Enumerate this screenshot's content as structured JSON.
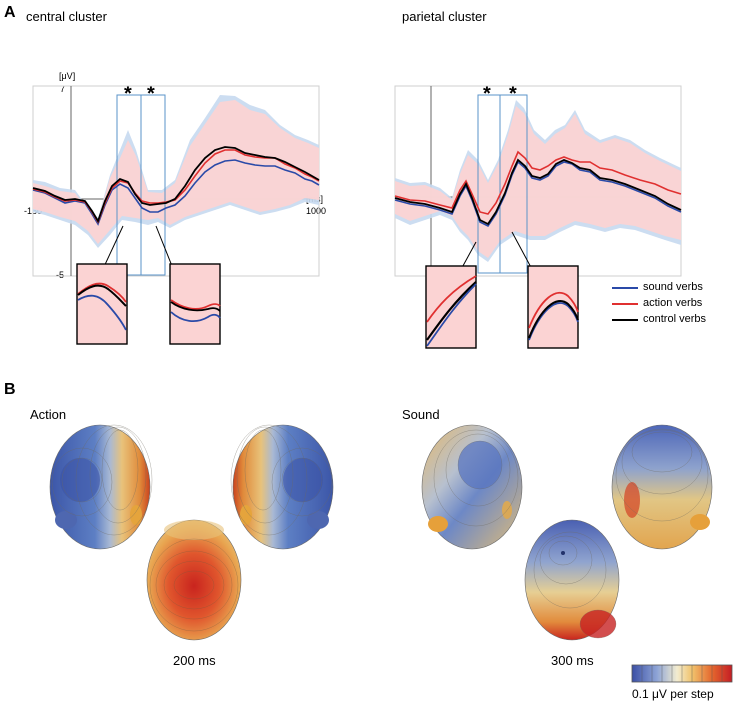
{
  "panelA": {
    "letter": "A",
    "clusters": [
      {
        "title": "central cluster",
        "y_unit": "[μV]",
        "x_unit": "[ms]",
        "y_max": "7",
        "y_min": "-5",
        "x_min": "-150",
        "x_max": "1000",
        "markers": [
          "*",
          "*"
        ]
      },
      {
        "title": "parietal cluster",
        "markers": [
          "*",
          "*"
        ]
      }
    ]
  },
  "legend": {
    "items": [
      {
        "label": "sound verbs",
        "color": "#2a4aa8"
      },
      {
        "label": "action verbs",
        "color": "#e03030"
      },
      {
        "label": "control verbs",
        "color": "#000000"
      }
    ]
  },
  "panelB": {
    "letter": "B",
    "groups": [
      {
        "title": "Action",
        "time": "200 ms"
      },
      {
        "title": "Sound",
        "time": "300 ms"
      }
    ],
    "scale": {
      "label": "0.1  μV per step"
    }
  },
  "colors": {
    "sound": "#2a4aa8",
    "action": "#e03030",
    "control": "#000000",
    "band_pink": "#fbd8d8",
    "band_blue": "#c6d9ef",
    "window_box": "#5a93c8"
  }
}
